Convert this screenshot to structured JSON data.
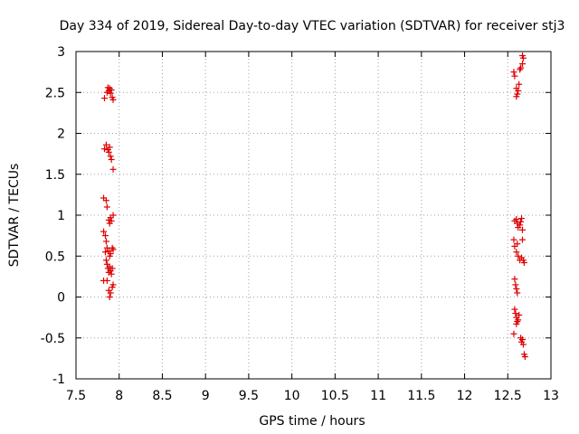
{
  "chart_data": {
    "type": "scatter",
    "title": "Day 334 of 2019, Sidereal Day-to-day VTEC variation (SDTVAR) for receiver stj3",
    "xlabel": "GPS time / hours",
    "ylabel": "SDTVAR / TECUs",
    "xlim": [
      7.5,
      13
    ],
    "ylim": [
      -1,
      3
    ],
    "x_ticks": [
      7.5,
      8,
      8.5,
      9,
      9.5,
      10,
      10.5,
      11,
      11.5,
      12,
      12.5,
      13
    ],
    "x_tick_labels": [
      "7.5",
      "8",
      "8.5",
      "9",
      "9.5",
      "10",
      "10.5",
      "11",
      "11.5",
      "12",
      "12.5",
      "13"
    ],
    "y_ticks": [
      -1,
      -0.5,
      0,
      0.5,
      1,
      1.5,
      2,
      2.5,
      3
    ],
    "y_tick_labels": [
      "-1",
      "-0.5",
      "0",
      "0.5",
      "1",
      "1.5",
      "2",
      "2.5",
      "3"
    ],
    "grid": true,
    "marker": "+",
    "color": "#dd0000",
    "series": [
      {
        "name": "SDTVAR",
        "points": [
          [
            7.83,
            2.43
          ],
          [
            7.86,
            2.5
          ],
          [
            7.87,
            2.56
          ],
          [
            7.88,
            2.52
          ],
          [
            7.89,
            2.55
          ],
          [
            7.9,
            2.49
          ],
          [
            7.91,
            2.53
          ],
          [
            7.92,
            2.44
          ],
          [
            7.93,
            2.41
          ],
          [
            7.83,
            1.81
          ],
          [
            7.85,
            1.86
          ],
          [
            7.87,
            1.8
          ],
          [
            7.88,
            1.77
          ],
          [
            7.89,
            1.83
          ],
          [
            7.9,
            1.72
          ],
          [
            7.91,
            1.68
          ],
          [
            7.93,
            1.56
          ],
          [
            7.82,
            1.21
          ],
          [
            7.85,
            1.18
          ],
          [
            7.86,
            1.1
          ],
          [
            7.88,
            0.94
          ],
          [
            7.89,
            0.9
          ],
          [
            7.9,
            0.97
          ],
          [
            7.91,
            0.93
          ],
          [
            7.93,
            1.0
          ],
          [
            7.82,
            0.8
          ],
          [
            7.84,
            0.75
          ],
          [
            7.85,
            0.68
          ],
          [
            7.86,
            0.6
          ],
          [
            7.84,
            0.55
          ],
          [
            7.88,
            0.56
          ],
          [
            7.89,
            0.5
          ],
          [
            7.9,
            0.53
          ],
          [
            7.92,
            0.6
          ],
          [
            7.93,
            0.58
          ],
          [
            7.85,
            0.45
          ],
          [
            7.86,
            0.4
          ],
          [
            7.87,
            0.35
          ],
          [
            7.88,
            0.3
          ],
          [
            7.89,
            0.37
          ],
          [
            7.9,
            0.32
          ],
          [
            7.91,
            0.28
          ],
          [
            7.92,
            0.35
          ],
          [
            7.82,
            0.2
          ],
          [
            7.86,
            0.2
          ],
          [
            7.88,
            0.08
          ],
          [
            7.9,
            0.05
          ],
          [
            7.89,
            0.0
          ],
          [
            7.92,
            0.12
          ],
          [
            7.93,
            0.15
          ],
          [
            12.57,
            2.75
          ],
          [
            12.58,
            2.7
          ],
          [
            12.6,
            2.55
          ],
          [
            12.61,
            2.48
          ],
          [
            12.6,
            2.45
          ],
          [
            12.62,
            2.52
          ],
          [
            12.63,
            2.6
          ],
          [
            12.64,
            2.78
          ],
          [
            12.65,
            2.8
          ],
          [
            12.67,
            2.85
          ],
          [
            12.67,
            2.95
          ],
          [
            12.68,
            2.92
          ],
          [
            12.58,
            0.93
          ],
          [
            12.6,
            0.95
          ],
          [
            12.61,
            0.9
          ],
          [
            12.62,
            0.85
          ],
          [
            12.64,
            0.88
          ],
          [
            12.65,
            0.92
          ],
          [
            12.66,
            0.96
          ],
          [
            12.67,
            0.82
          ],
          [
            12.57,
            0.7
          ],
          [
            12.58,
            0.62
          ],
          [
            12.6,
            0.55
          ],
          [
            12.61,
            0.65
          ],
          [
            12.62,
            0.5
          ],
          [
            12.64,
            0.45
          ],
          [
            12.66,
            0.48
          ],
          [
            12.67,
            0.7
          ],
          [
            12.68,
            0.45
          ],
          [
            12.69,
            0.42
          ],
          [
            12.58,
            0.22
          ],
          [
            12.59,
            0.15
          ],
          [
            12.6,
            0.1
          ],
          [
            12.61,
            0.05
          ],
          [
            12.58,
            -0.15
          ],
          [
            12.59,
            -0.2
          ],
          [
            12.6,
            -0.25
          ],
          [
            12.61,
            -0.3
          ],
          [
            12.62,
            -0.28
          ],
          [
            12.63,
            -0.22
          ],
          [
            12.6,
            -0.33
          ],
          [
            12.57,
            -0.45
          ],
          [
            12.65,
            -0.5
          ],
          [
            12.66,
            -0.55
          ],
          [
            12.67,
            -0.52
          ],
          [
            12.68,
            -0.58
          ],
          [
            12.69,
            -0.7
          ],
          [
            12.7,
            -0.73
          ]
        ]
      }
    ]
  }
}
